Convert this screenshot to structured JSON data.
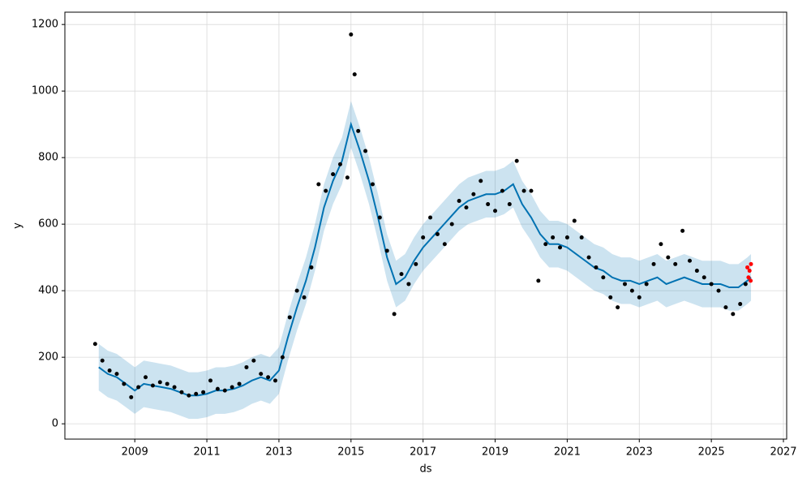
{
  "chart_data": {
    "type": "forecast",
    "xlabel": "ds",
    "ylabel": "y",
    "xlim": [
      2007.06,
      2027.09
    ],
    "ylim": [
      -46,
      1237
    ],
    "xticks": [
      2009,
      2011,
      2013,
      2015,
      2017,
      2019,
      2021,
      2023,
      2025,
      2027
    ],
    "yticks": [
      0,
      200,
      400,
      600,
      800,
      1000,
      1200
    ],
    "grid": true,
    "band": {
      "color": "#0072B2",
      "x": [
        2008.0,
        2008.25,
        2008.5,
        2008.75,
        2009.0,
        2009.25,
        2009.5,
        2009.75,
        2010.0,
        2010.25,
        2010.5,
        2010.75,
        2011.0,
        2011.25,
        2011.5,
        2011.75,
        2012.0,
        2012.25,
        2012.5,
        2012.75,
        2013.0,
        2013.25,
        2013.5,
        2013.75,
        2014.0,
        2014.25,
        2014.5,
        2014.75,
        2015.0,
        2015.25,
        2015.5,
        2015.75,
        2016.0,
        2016.25,
        2016.5,
        2016.75,
        2017.0,
        2017.25,
        2017.5,
        2017.75,
        2018.0,
        2018.25,
        2018.5,
        2018.75,
        2019.0,
        2019.25,
        2019.5,
        2019.75,
        2020.0,
        2020.25,
        2020.5,
        2020.75,
        2021.0,
        2021.25,
        2021.5,
        2021.75,
        2022.0,
        2022.25,
        2022.5,
        2022.75,
        2023.0,
        2023.25,
        2023.5,
        2023.75,
        2024.0,
        2024.25,
        2024.5,
        2024.75,
        2025.0,
        2025.25,
        2025.5,
        2025.75,
        2026.0,
        2026.1
      ],
      "lower": [
        100,
        80,
        70,
        50,
        30,
        50,
        45,
        40,
        35,
        25,
        15,
        15,
        20,
        30,
        30,
        35,
        45,
        60,
        70,
        60,
        90,
        190,
        280,
        360,
        460,
        580,
        660,
        720,
        830,
        750,
        660,
        550,
        430,
        350,
        370,
        420,
        460,
        490,
        520,
        550,
        580,
        600,
        610,
        620,
        620,
        630,
        650,
        590,
        550,
        500,
        470,
        470,
        460,
        440,
        420,
        400,
        390,
        370,
        360,
        360,
        350,
        360,
        370,
        350,
        360,
        370,
        360,
        350,
        350,
        350,
        340,
        340,
        360,
        370
      ],
      "upper": [
        240,
        220,
        210,
        190,
        170,
        190,
        185,
        180,
        175,
        165,
        155,
        155,
        160,
        170,
        170,
        175,
        185,
        200,
        210,
        200,
        230,
        330,
        420,
        500,
        600,
        720,
        800,
        860,
        970,
        890,
        800,
        690,
        570,
        490,
        510,
        560,
        600,
        630,
        660,
        690,
        720,
        740,
        750,
        760,
        760,
        770,
        790,
        730,
        690,
        640,
        610,
        610,
        600,
        580,
        560,
        540,
        530,
        510,
        500,
        500,
        490,
        500,
        510,
        490,
        500,
        510,
        500,
        490,
        490,
        490,
        480,
        480,
        500,
        510
      ]
    },
    "series": [
      {
        "kind": "line",
        "color": "#0072B2",
        "x": [
          2008.0,
          2008.25,
          2008.5,
          2008.75,
          2009.0,
          2009.25,
          2009.5,
          2009.75,
          2010.0,
          2010.25,
          2010.5,
          2010.75,
          2011.0,
          2011.25,
          2011.5,
          2011.75,
          2012.0,
          2012.25,
          2012.5,
          2012.75,
          2013.0,
          2013.25,
          2013.5,
          2013.75,
          2014.0,
          2014.25,
          2014.5,
          2014.75,
          2015.0,
          2015.25,
          2015.5,
          2015.75,
          2016.0,
          2016.25,
          2016.5,
          2016.75,
          2017.0,
          2017.25,
          2017.5,
          2017.75,
          2018.0,
          2018.25,
          2018.5,
          2018.75,
          2019.0,
          2019.25,
          2019.5,
          2019.75,
          2020.0,
          2020.25,
          2020.5,
          2020.75,
          2021.0,
          2021.25,
          2021.5,
          2021.75,
          2022.0,
          2022.25,
          2022.5,
          2022.75,
          2023.0,
          2023.25,
          2023.5,
          2023.75,
          2024.0,
          2024.25,
          2024.5,
          2024.75,
          2025.0,
          2025.25,
          2025.5,
          2025.75,
          2026.0,
          2026.1
        ],
        "values": [
          170,
          150,
          140,
          120,
          100,
          120,
          115,
          110,
          105,
          95,
          85,
          85,
          90,
          100,
          100,
          105,
          115,
          130,
          140,
          130,
          160,
          260,
          350,
          430,
          530,
          650,
          730,
          790,
          900,
          820,
          730,
          620,
          500,
          420,
          440,
          490,
          530,
          560,
          590,
          620,
          650,
          670,
          680,
          690,
          690,
          700,
          720,
          660,
          620,
          570,
          540,
          540,
          530,
          510,
          490,
          470,
          460,
          440,
          430,
          430,
          420,
          430,
          440,
          420,
          430,
          440,
          430,
          420,
          420,
          420,
          410,
          410,
          430,
          440
        ]
      },
      {
        "kind": "points",
        "color": "#000000",
        "x": [
          2007.9,
          2008.1,
          2008.3,
          2008.5,
          2008.7,
          2008.9,
          2009.1,
          2009.3,
          2009.5,
          2009.7,
          2009.9,
          2010.1,
          2010.3,
          2010.5,
          2010.7,
          2010.9,
          2011.1,
          2011.3,
          2011.5,
          2011.7,
          2011.9,
          2012.1,
          2012.3,
          2012.5,
          2012.7,
          2012.9,
          2013.1,
          2013.3,
          2013.5,
          2013.7,
          2013.9,
          2014.1,
          2014.3,
          2014.5,
          2014.7,
          2014.9,
          2015.0,
          2015.1,
          2015.2,
          2015.4,
          2015.6,
          2015.8,
          2016.0,
          2016.2,
          2016.4,
          2016.6,
          2016.8,
          2017.0,
          2017.2,
          2017.4,
          2017.6,
          2017.8,
          2018.0,
          2018.2,
          2018.4,
          2018.6,
          2018.8,
          2019.0,
          2019.2,
          2019.4,
          2019.6,
          2019.8,
          2020.0,
          2020.2,
          2020.4,
          2020.6,
          2020.8,
          2021.0,
          2021.2,
          2021.4,
          2021.6,
          2021.8,
          2022.0,
          2022.2,
          2022.4,
          2022.6,
          2022.8,
          2023.0,
          2023.2,
          2023.4,
          2023.6,
          2023.8,
          2024.0,
          2024.2,
          2024.4,
          2024.6,
          2024.8,
          2025.0,
          2025.2,
          2025.4,
          2025.6,
          2025.8,
          2025.95
        ],
        "values": [
          240,
          190,
          160,
          150,
          120,
          80,
          110,
          140,
          115,
          125,
          120,
          110,
          95,
          85,
          90,
          95,
          130,
          105,
          100,
          110,
          120,
          170,
          190,
          150,
          140,
          130,
          200,
          320,
          400,
          380,
          470,
          720,
          700,
          750,
          780,
          740,
          1170,
          1050,
          880,
          820,
          720,
          620,
          520,
          330,
          450,
          420,
          480,
          560,
          620,
          570,
          540,
          600,
          670,
          650,
          690,
          730,
          660,
          640,
          700,
          660,
          790,
          700,
          700,
          430,
          540,
          560,
          530,
          560,
          610,
          560,
          500,
          470,
          440,
          380,
          350,
          420,
          400,
          380,
          420,
          480,
          540,
          500,
          480,
          580,
          490,
          460,
          440,
          420,
          400,
          350,
          330,
          360,
          420
        ]
      },
      {
        "kind": "points",
        "color": "#ff0000",
        "x": [
          2026.0,
          2026.03,
          2026.06,
          2026.09,
          2026.1
        ],
        "values": [
          470,
          440,
          460,
          430,
          480
        ]
      }
    ]
  }
}
